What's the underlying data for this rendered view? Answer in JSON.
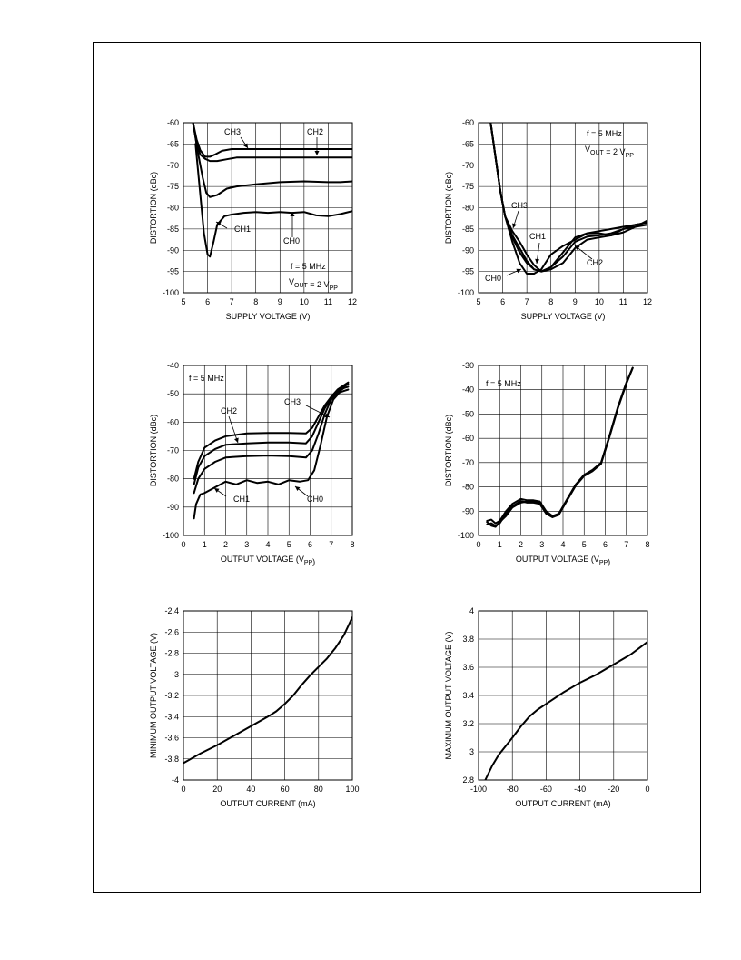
{
  "colors": {
    "line": "#000000",
    "grid": "#000000",
    "background": "#ffffff"
  },
  "chart_data": [
    {
      "type": "line",
      "xlabel": "SUPPLY VOLTAGE (V)",
      "ylabel": "DISTORTION (dBc)",
      "xlim": [
        5,
        12
      ],
      "ylim": [
        -100,
        -60
      ],
      "xticks": [
        5,
        6,
        7,
        8,
        9,
        10,
        11,
        12
      ],
      "yticks": [
        -100,
        -95,
        -90,
        -85,
        -80,
        -75,
        -70,
        -65,
        -60
      ],
      "grid": true,
      "annotations": [
        "f = 5 MHz",
        "V_OUT = 2 V_PP"
      ],
      "series": [
        {
          "name": "CH3",
          "x": [
            5.4,
            5.55,
            5.7,
            5.9,
            6.1,
            6.3,
            6.6,
            7,
            8,
            9,
            10,
            11,
            12
          ],
          "y": [
            -60,
            -64,
            -66.5,
            -68,
            -68,
            -67.5,
            -66.6,
            -66.2,
            -66.2,
            -66.2,
            -66.2,
            -66.2,
            -66.2
          ]
        },
        {
          "name": "CH2",
          "x": [
            5.4,
            5.55,
            5.7,
            5.9,
            6.1,
            6.4,
            6.8,
            7.2,
            8,
            9,
            10,
            11,
            12
          ],
          "y": [
            -60,
            -65,
            -67.5,
            -68.5,
            -69,
            -69,
            -68.6,
            -68.2,
            -68.2,
            -68.2,
            -68.2,
            -68.2,
            -68.2
          ]
        },
        {
          "name": "CH1",
          "x": [
            5.4,
            5.6,
            5.8,
            5.95,
            6.1,
            6.4,
            6.8,
            7.2,
            8,
            9,
            10,
            11,
            11.5,
            12
          ],
          "y": [
            -60,
            -67,
            -73,
            -76.5,
            -77.5,
            -77,
            -75.5,
            -75,
            -74.5,
            -74,
            -73.8,
            -74,
            -74,
            -73.8
          ]
        },
        {
          "name": "CH0",
          "x": [
            5.5,
            5.7,
            5.85,
            6.0,
            6.1,
            6.25,
            6.4,
            6.7,
            7.0,
            7.5,
            8,
            8.5,
            9,
            9.5,
            10,
            10.5,
            11,
            11.5,
            12
          ],
          "y": [
            -65,
            -77,
            -86,
            -91,
            -91.5,
            -88,
            -84,
            -82,
            -81.6,
            -81.2,
            -81,
            -81.2,
            -81,
            -81.2,
            -81,
            -81.8,
            -82,
            -81.5,
            -80.8
          ]
        }
      ]
    },
    {
      "type": "line",
      "xlabel": "SUPPLY VOLTAGE (V)",
      "ylabel": "DISTORTION (dBc)",
      "xlim": [
        5,
        12
      ],
      "ylim": [
        -100,
        -60
      ],
      "xticks": [
        5,
        6,
        7,
        8,
        9,
        10,
        11,
        12
      ],
      "yticks": [
        -100,
        -95,
        -90,
        -85,
        -80,
        -75,
        -70,
        -65,
        -60
      ],
      "grid": true,
      "annotations": [
        "f = 5 MHz",
        "V_OUT = 2 V_PP"
      ],
      "series": [
        {
          "name": "CH0",
          "x": [
            5.5,
            5.7,
            5.9,
            6.1,
            6.4,
            6.7,
            7.0,
            7.3,
            7.6,
            8,
            8.5,
            9,
            9.5,
            10,
            10.5,
            11,
            11.5,
            12
          ],
          "y": [
            -60,
            -68,
            -76,
            -82,
            -88,
            -93,
            -95.5,
            -95.5,
            -94.5,
            -91,
            -89,
            -87.5,
            -86,
            -85.5,
            -85,
            -84.5,
            -84,
            -83.5
          ]
        },
        {
          "name": "CH3",
          "x": [
            5.5,
            5.7,
            5.9,
            6.1,
            6.4,
            6.7,
            7.0,
            7.3,
            7.6,
            8,
            8.5,
            9,
            9.5,
            10,
            10.5,
            11,
            11.5,
            12
          ],
          "y": [
            -60,
            -68,
            -76,
            -82,
            -85.5,
            -88,
            -91,
            -93.5,
            -95,
            -94,
            -90.5,
            -87,
            -86,
            -86,
            -86.5,
            -85,
            -84,
            -83.5
          ]
        },
        {
          "name": "CH1",
          "x": [
            5.5,
            5.7,
            5.9,
            6.1,
            6.4,
            6.7,
            7.0,
            7.3,
            7.6,
            8,
            8.5,
            9,
            9.5,
            10,
            10.5,
            11,
            11.5,
            12
          ],
          "y": [
            -60,
            -68,
            -76,
            -82,
            -86.5,
            -89.5,
            -92.5,
            -94.5,
            -95,
            -94,
            -91.5,
            -88,
            -86.8,
            -86.5,
            -86,
            -85,
            -84.5,
            -84
          ]
        },
        {
          "name": "CH2",
          "x": [
            5.5,
            5.7,
            5.9,
            6.1,
            6.4,
            6.7,
            7.0,
            7.3,
            7.6,
            8,
            8.5,
            9,
            9.5,
            10,
            10.5,
            11,
            11.5,
            12
          ],
          "y": [
            -60,
            -68,
            -76,
            -82,
            -87,
            -90.5,
            -93,
            -94.5,
            -95,
            -94.5,
            -93,
            -89.5,
            -87.5,
            -87,
            -86.5,
            -85.8,
            -84.5,
            -83
          ]
        }
      ]
    },
    {
      "type": "line",
      "xlabel": "OUTPUT VOLTAGE (V_PP)",
      "ylabel": "DISTORTION (dBc)",
      "xlim": [
        0,
        8
      ],
      "ylim": [
        -100,
        -40
      ],
      "xticks": [
        0,
        1,
        2,
        3,
        4,
        5,
        6,
        7,
        8
      ],
      "yticks": [
        -100,
        -90,
        -80,
        -70,
        -60,
        -50,
        -40
      ],
      "grid": true,
      "annotations": [
        "f = 5 MHz"
      ],
      "series": [
        {
          "name": "CH3",
          "x": [
            0.5,
            0.7,
            1,
            1.5,
            2,
            3,
            4,
            5,
            5.8,
            6.1,
            6.4,
            6.7,
            7,
            7.3,
            7.6,
            7.8
          ],
          "y": [
            -80,
            -74,
            -69,
            -66.5,
            -65,
            -64,
            -63.8,
            -63.8,
            -64,
            -62,
            -58,
            -54,
            -51,
            -48.5,
            -47,
            -46
          ]
        },
        {
          "name": "CH2",
          "x": [
            0.5,
            0.7,
            1,
            1.5,
            2,
            3,
            4,
            5,
            5.8,
            6.1,
            6.4,
            6.7,
            7,
            7.3,
            7.6,
            7.8
          ],
          "y": [
            -82,
            -76,
            -72,
            -69.5,
            -68,
            -67.5,
            -67.2,
            -67.2,
            -67.5,
            -65,
            -60,
            -55,
            -51.5,
            -49,
            -47.5,
            -46.5
          ]
        },
        {
          "name": "CH1",
          "x": [
            0.5,
            0.7,
            1,
            1.5,
            2,
            3,
            4,
            5,
            5.8,
            6.1,
            6.4,
            6.7,
            7,
            7.3,
            7.6,
            7.8
          ],
          "y": [
            -85,
            -80,
            -76.5,
            -74,
            -72.5,
            -72,
            -71.8,
            -72,
            -72.5,
            -70,
            -64,
            -57,
            -52,
            -49.5,
            -48,
            -47.5
          ]
        },
        {
          "name": "CH0",
          "x": [
            0.5,
            0.6,
            0.8,
            1,
            1.5,
            2,
            2.5,
            3,
            3.5,
            4,
            4.5,
            5,
            5.5,
            5.9,
            6.2,
            6.5,
            6.8,
            7.1,
            7.4,
            7.8
          ],
          "y": [
            -94,
            -89,
            -85.5,
            -85,
            -83,
            -81,
            -82,
            -80.5,
            -81.5,
            -81,
            -82,
            -80.5,
            -81,
            -80.5,
            -77,
            -68,
            -58,
            -52,
            -49.5,
            -48.5
          ]
        }
      ]
    },
    {
      "type": "line",
      "xlabel": "OUTPUT VOLTAGE (V_PP)",
      "ylabel": "DISTORTION (dBc)",
      "xlim": [
        0,
        8
      ],
      "ylim": [
        -100,
        -30
      ],
      "xticks": [
        0,
        1,
        2,
        3,
        4,
        5,
        6,
        7,
        8
      ],
      "yticks": [
        -100,
        -90,
        -80,
        -70,
        -60,
        -50,
        -40,
        -30
      ],
      "grid": true,
      "annotations": [
        "f = 5 MHz"
      ],
      "series": [
        {
          "name": "",
          "x": [
            0.4,
            0.6,
            0.8,
            1,
            1.3,
            1.6,
            2,
            2.3,
            2.6,
            2.9,
            3.2,
            3.5,
            3.8,
            4.2,
            4.6,
            5,
            5.4,
            5.8,
            6.2,
            6.6,
            7,
            7.3
          ],
          "y": [
            -94,
            -93.5,
            -95,
            -94,
            -90,
            -87,
            -85,
            -85.5,
            -85.5,
            -86,
            -90,
            -92,
            -91,
            -85,
            -79,
            -75,
            -73,
            -70,
            -59,
            -47,
            -37,
            -31
          ]
        },
        {
          "name": "",
          "x": [
            0.4,
            0.6,
            0.8,
            1,
            1.3,
            1.6,
            2,
            2.3,
            2.6,
            2.9,
            3.2,
            3.5,
            3.8,
            4.2,
            4.6,
            5,
            5.4,
            5.8,
            6.2,
            6.6,
            7,
            7.3
          ],
          "y": [
            -95.5,
            -95,
            -96,
            -95,
            -91,
            -88,
            -85.8,
            -86.5,
            -86.5,
            -87,
            -91,
            -92.5,
            -91.5,
            -85.5,
            -79.5,
            -75.5,
            -73.5,
            -70.5,
            -59.5,
            -47.5,
            -37.5,
            -31
          ]
        },
        {
          "name": "",
          "x": [
            0.4,
            0.6,
            0.8,
            1,
            1.3,
            1.6,
            2,
            2.3,
            2.6,
            2.9,
            3.2,
            3.5,
            3.8,
            4.2,
            4.6,
            5,
            5.4,
            5.8,
            6.2,
            6.6,
            7,
            7.3
          ],
          "y": [
            -94.5,
            -96,
            -96.5,
            -94.5,
            -92,
            -88.5,
            -86.5,
            -86,
            -86,
            -86.5,
            -90.5,
            -92.2,
            -91.2,
            -85.2,
            -79.2,
            -75.2,
            -73.2,
            -70.2,
            -59.2,
            -47.2,
            -37.2,
            -31
          ]
        }
      ]
    },
    {
      "type": "line",
      "xlabel": "OUTPUT CURRENT (mA)",
      "ylabel": "MINIMUM OUTPUT VOLTAGE (V)",
      "xlim": [
        0,
        100
      ],
      "ylim": [
        -4,
        -2.4
      ],
      "xticks": [
        0,
        20,
        40,
        60,
        80,
        100
      ],
      "yticks": [
        -4,
        -3.8,
        -3.6,
        -3.4,
        -3.2,
        -3,
        -2.8,
        -2.6,
        -2.4
      ],
      "yticklabels": [
        "-4",
        "-3.8",
        "-3.6",
        "-3.4",
        "-3.2",
        "-3",
        "-2.8",
        "-2.6",
        "-2.4"
      ],
      "grid": true,
      "annotations": [],
      "series": [
        {
          "name": "",
          "x": [
            0,
            10,
            20,
            30,
            40,
            50,
            55,
            60,
            65,
            70,
            75,
            80,
            85,
            90,
            95,
            100
          ],
          "y": [
            -3.84,
            -3.75,
            -3.67,
            -3.58,
            -3.49,
            -3.4,
            -3.35,
            -3.28,
            -3.2,
            -3.1,
            -3.01,
            -2.93,
            -2.85,
            -2.75,
            -2.63,
            -2.46
          ]
        }
      ]
    },
    {
      "type": "line",
      "xlabel": "OUTPUT CURRENT (mA)",
      "ylabel": "MAXIMUM OUTPUT VOLTAGE (V)",
      "xlim": [
        -100,
        0
      ],
      "ylim": [
        2.8,
        4
      ],
      "xticks": [
        -100,
        -80,
        -60,
        -40,
        -20,
        0
      ],
      "yticks": [
        2.8,
        3,
        3.2,
        3.4,
        3.6,
        3.8,
        4
      ],
      "yticklabels": [
        "2.8",
        "3",
        "3.2",
        "3.4",
        "3.6",
        "3.8",
        "4"
      ],
      "grid": true,
      "annotations": [],
      "series": [
        {
          "name": "",
          "x": [
            -96,
            -92,
            -88,
            -84,
            -80,
            -75,
            -70,
            -65,
            -60,
            -50,
            -40,
            -30,
            -20,
            -10,
            0
          ],
          "y": [
            2.8,
            2.9,
            2.98,
            3.04,
            3.1,
            3.18,
            3.25,
            3.3,
            3.34,
            3.42,
            3.49,
            3.55,
            3.62,
            3.69,
            3.78
          ]
        }
      ]
    }
  ]
}
